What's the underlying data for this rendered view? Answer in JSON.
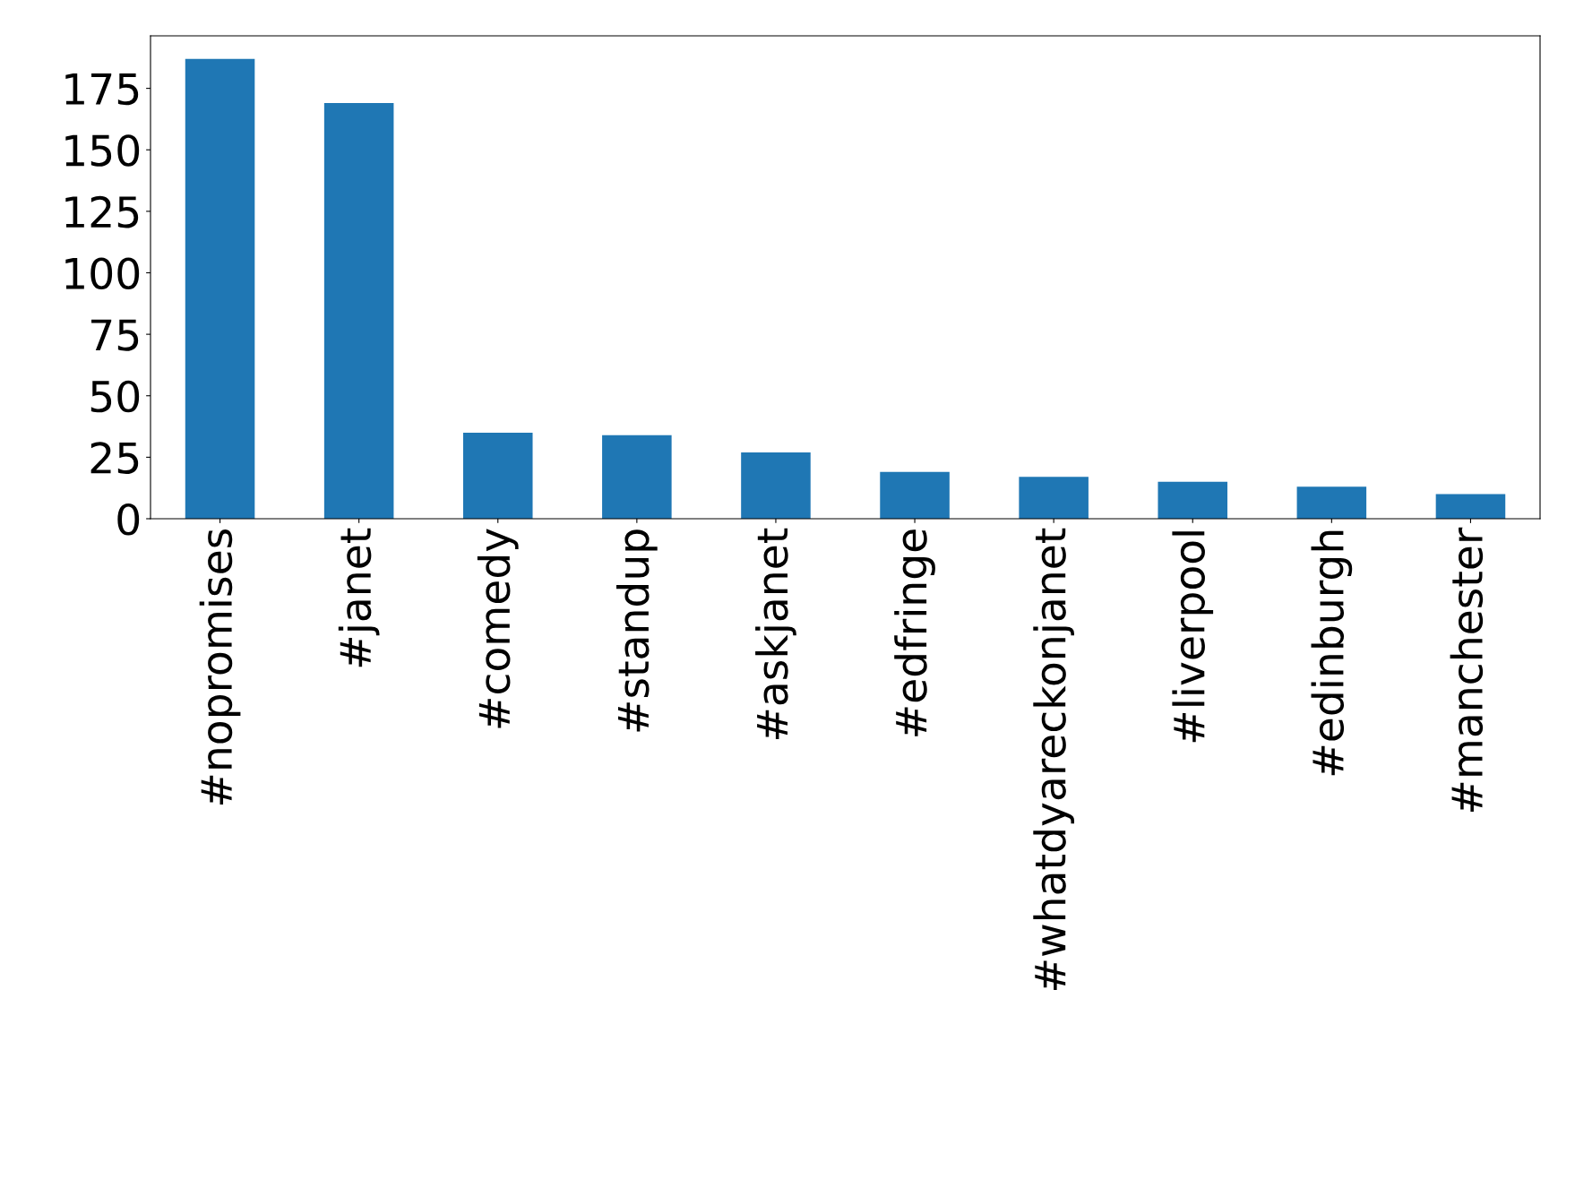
{
  "chart_data": {
    "type": "bar",
    "categories": [
      "#nopromises",
      "#janet",
      "#comedy",
      "#standup",
      "#askjanet",
      "#edfringe",
      "#whatdyareckonjanet",
      "#liverpool",
      "#edinburgh",
      "#manchester"
    ],
    "values": [
      187,
      169,
      35,
      34,
      27,
      19,
      17,
      15,
      13,
      10
    ],
    "color": "#1f77b4",
    "ylim": [
      0,
      196.35
    ],
    "yticks": [
      0,
      25,
      50,
      75,
      100,
      125,
      150,
      175
    ],
    "grid": false,
    "legend": false
  }
}
